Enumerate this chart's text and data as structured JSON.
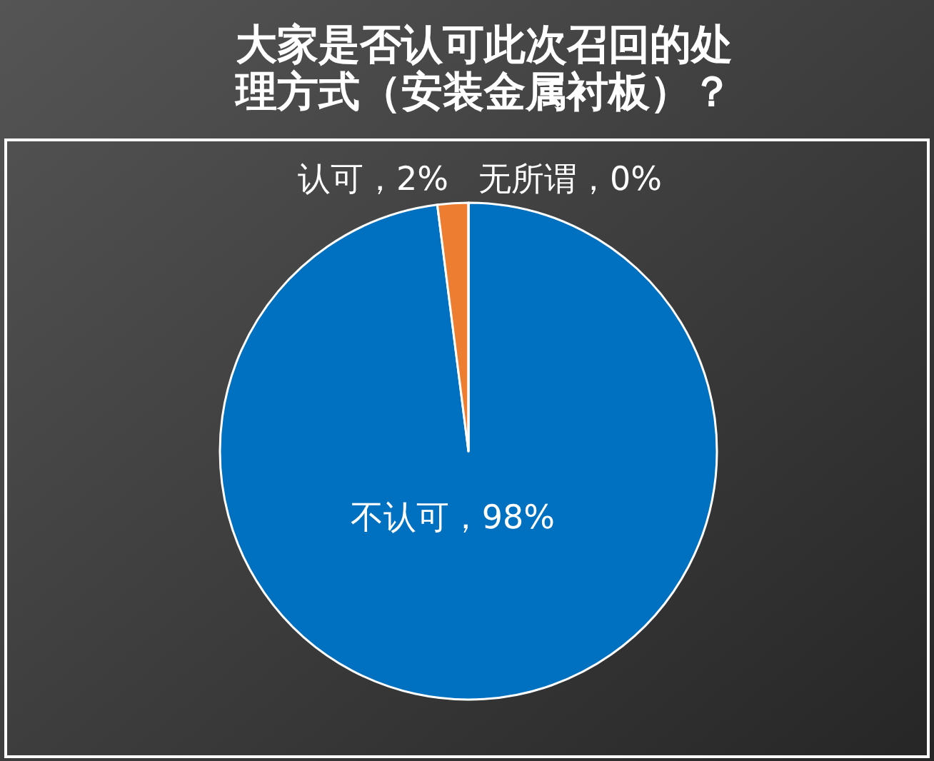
{
  "chart_data": {
    "type": "pie",
    "title": "大家是否认可此次召回的处理方式（安装金属衬板）？",
    "categories": [
      "不认可",
      "认可",
      "无所谓"
    ],
    "values": [
      98,
      2,
      0
    ],
    "colors": [
      "#0070c0",
      "#ed7d31",
      "#a5a5a5"
    ],
    "value_labels": [
      "，98%",
      "，2%",
      "，0%"
    ]
  }
}
